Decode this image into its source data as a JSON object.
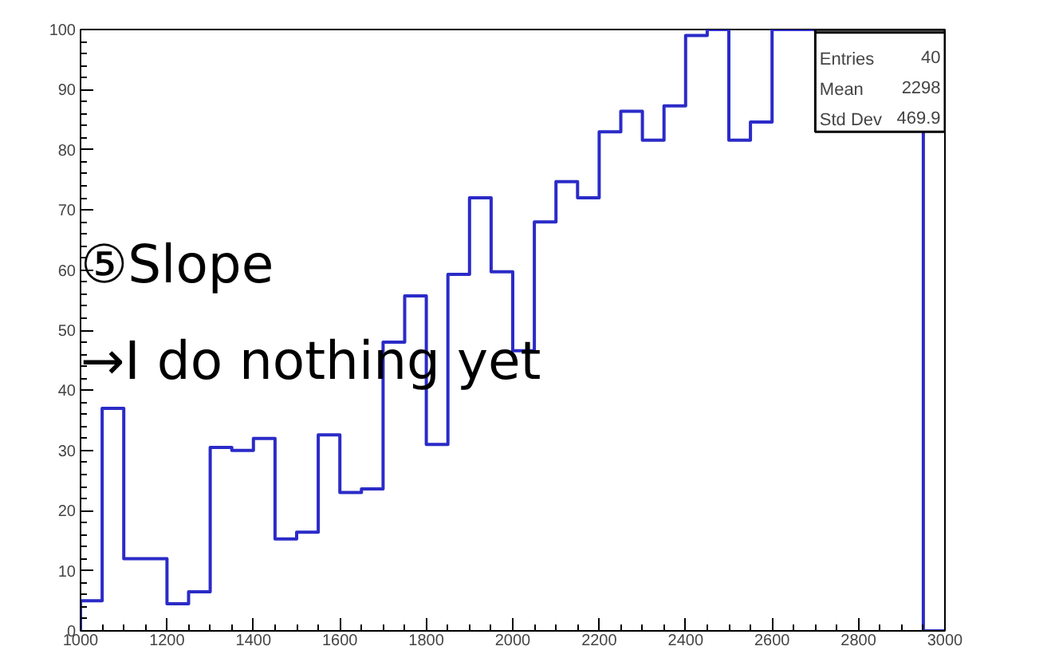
{
  "chart_data": {
    "type": "histogram",
    "color": "#2b2bc8",
    "bins": [
      1000,
      1050,
      1100,
      1150,
      1200,
      1250,
      1300,
      1350,
      1400,
      1450,
      1500,
      1550,
      1600,
      1650,
      1700,
      1750,
      1800,
      1850,
      1900,
      1950,
      2000,
      2050,
      2100,
      2150,
      2200,
      2250,
      2300,
      2350,
      2400,
      2450,
      2500,
      2550,
      2600,
      2650,
      2700,
      2750,
      2800,
      2850,
      2900,
      2950,
      3000
    ],
    "values": [
      5,
      37,
      12,
      12,
      4.5,
      6.5,
      30.5,
      30,
      32,
      15.3,
      16.4,
      32.6,
      23,
      23.6,
      48,
      55.7,
      31,
      59.3,
      72,
      59.7,
      46.6,
      68,
      74.7,
      72,
      83,
      86.4,
      81.6,
      87.3,
      99,
      100,
      81.6,
      84.6,
      100,
      100,
      100,
      100,
      100,
      100,
      100,
      0
    ],
    "xlim": [
      1000,
      3000
    ],
    "ylim": [
      0,
      100
    ],
    "xticks": [
      1000,
      1200,
      1400,
      1600,
      1800,
      2000,
      2200,
      2400,
      2600,
      2800,
      3000
    ],
    "yticks": [
      0,
      10,
      20,
      30,
      40,
      50,
      60,
      70,
      80,
      90,
      100
    ],
    "grid": false,
    "annotations": [
      "⑤Slope",
      "→I do nothing yet",
      "Entries",
      "40",
      "Mean",
      "2298",
      "Std Dev",
      "469.9"
    ]
  }
}
